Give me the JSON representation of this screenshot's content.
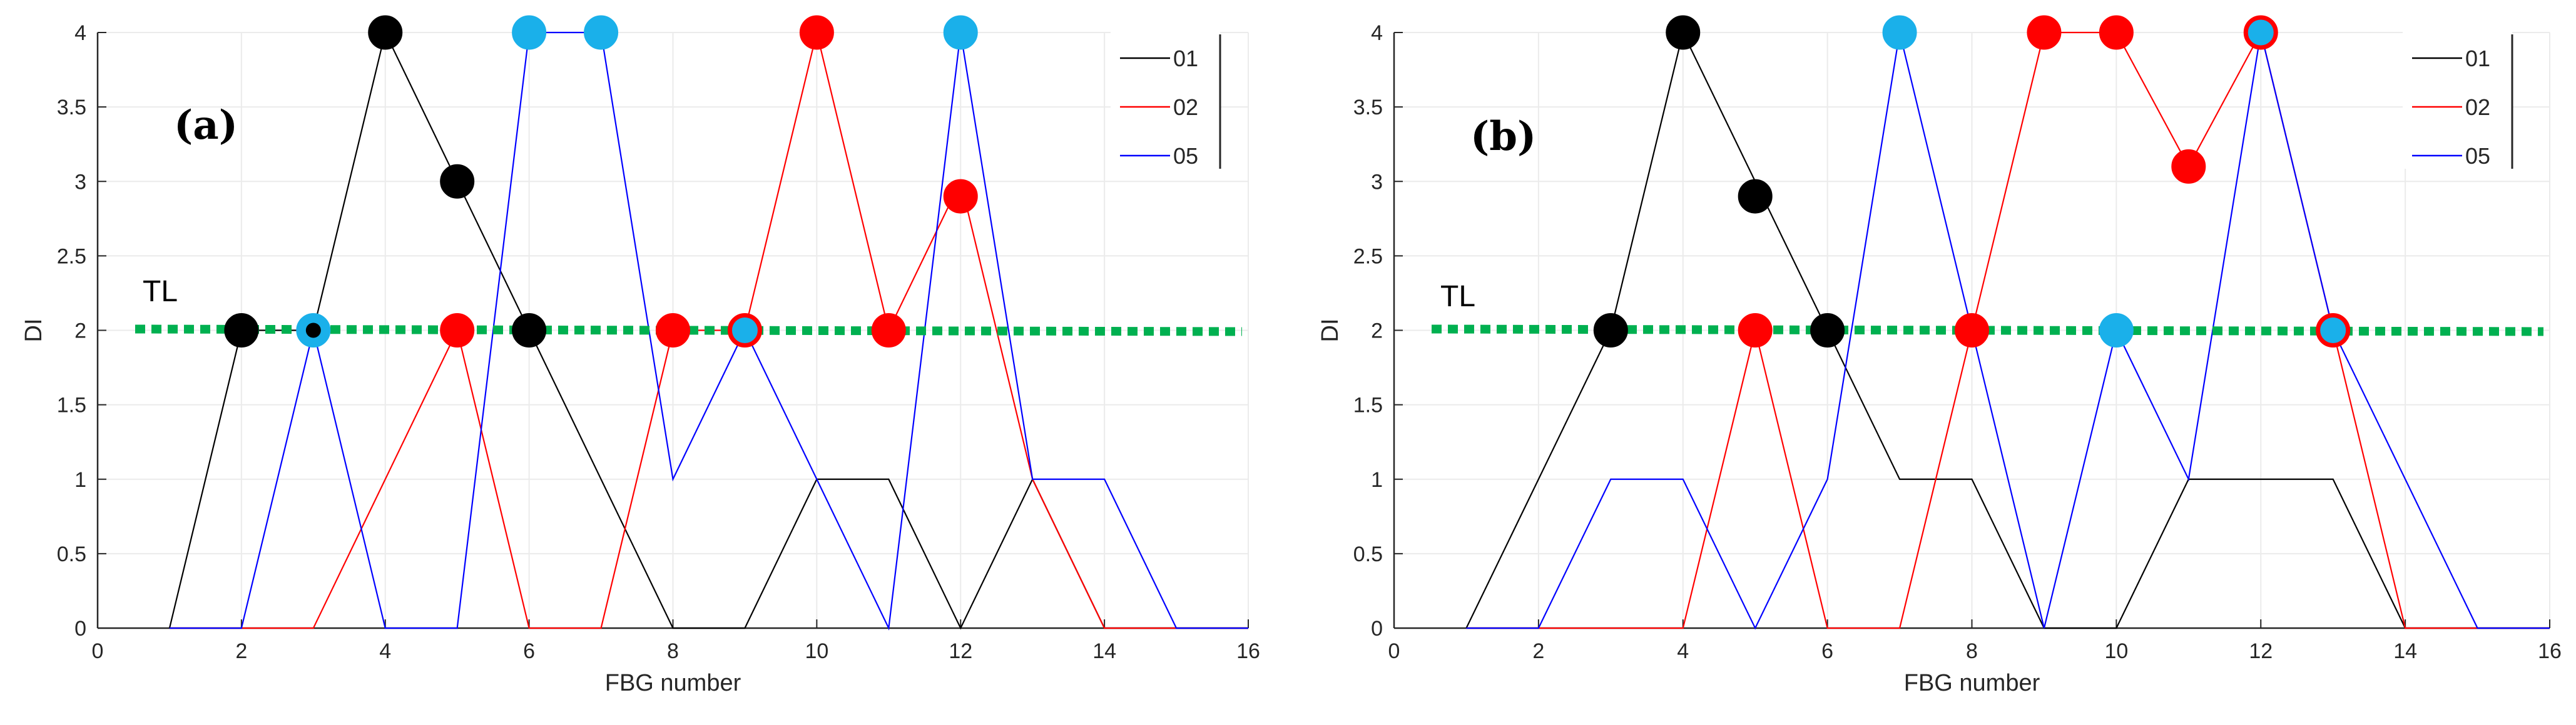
{
  "chart_data": [
    {
      "type": "line",
      "panel_label": "(a)",
      "xlabel": "FBG number",
      "ylabel": "DI",
      "xlim": [
        0,
        16
      ],
      "ylim": [
        0,
        4
      ],
      "xticks": [
        0,
        2,
        4,
        6,
        8,
        10,
        12,
        14,
        16
      ],
      "yticks": [
        0,
        0.5,
        1,
        1.5,
        2,
        2.5,
        3,
        3.5,
        4
      ],
      "threshold": {
        "label": "TL",
        "value": 2,
        "color": "#00b050"
      },
      "legend": {
        "position": "top-right",
        "entries": [
          "01",
          "02",
          "05"
        ]
      },
      "series": [
        {
          "name": "01",
          "color": "#000000",
          "x": [
            1,
            2,
            3,
            4,
            5,
            6,
            7,
            8,
            9,
            10,
            11,
            12,
            13,
            14,
            15,
            16
          ],
          "y": [
            0,
            2,
            2,
            4,
            3,
            2,
            1,
            0,
            0,
            1,
            1,
            0,
            1,
            0,
            0,
            0
          ]
        },
        {
          "name": "02",
          "color": "#ff0000",
          "x": [
            1,
            2,
            3,
            4,
            5,
            6,
            7,
            8,
            9,
            10,
            11,
            12,
            13,
            14,
            15,
            16
          ],
          "y": [
            0,
            0,
            0,
            1,
            2,
            0,
            0,
            2,
            2,
            4,
            2,
            3,
            1,
            0,
            0,
            0
          ]
        },
        {
          "name": "05",
          "color": "#0000ff",
          "x": [
            1,
            2,
            3,
            4,
            5,
            6,
            7,
            8,
            9,
            10,
            11,
            12,
            13,
            14,
            15,
            16
          ],
          "y": [
            0,
            0,
            2,
            0,
            0,
            4,
            4,
            1,
            2,
            1,
            0,
            4,
            1,
            1,
            0,
            0
          ]
        }
      ],
      "markers": [
        {
          "x": 2,
          "y": 2,
          "fill": "#000000",
          "edge": "#000000"
        },
        {
          "x": 4,
          "y": 4,
          "fill": "#000000",
          "edge": "#000000"
        },
        {
          "x": 5,
          "y": 3,
          "fill": "#000000",
          "edge": "#000000"
        },
        {
          "x": 6,
          "y": 2,
          "fill": "#000000",
          "edge": "#000000"
        },
        {
          "x": 3,
          "y": 2,
          "fill": "#1ab0ea",
          "edge": "#1ab0ea",
          "inner": "#000000"
        },
        {
          "x": 6,
          "y": 4,
          "fill": "#1ab0ea",
          "edge": "#1ab0ea"
        },
        {
          "x": 7,
          "y": 4,
          "fill": "#1ab0ea",
          "edge": "#1ab0ea"
        },
        {
          "x": 12,
          "y": 4,
          "fill": "#1ab0ea",
          "edge": "#1ab0ea"
        },
        {
          "x": 5,
          "y": 2,
          "fill": "#ff0000",
          "edge": "#ff0000"
        },
        {
          "x": 8,
          "y": 2,
          "fill": "#ff0000",
          "edge": "#ff0000"
        },
        {
          "x": 9,
          "y": 2,
          "fill": "#1ab0ea",
          "edge": "#ff0000"
        },
        {
          "x": 10,
          "y": 4,
          "fill": "#ff0000",
          "edge": "#ff0000"
        },
        {
          "x": 11,
          "y": 2,
          "fill": "#ff0000",
          "edge": "#ff0000"
        },
        {
          "x": 12,
          "y": 2.9,
          "fill": "#ff0000",
          "edge": "#ff0000"
        }
      ]
    },
    {
      "type": "line",
      "panel_label": "(b)",
      "xlabel": "FBG number",
      "ylabel": "DI",
      "xlim": [
        0,
        16
      ],
      "ylim": [
        0,
        4
      ],
      "xticks": [
        0,
        2,
        4,
        6,
        8,
        10,
        12,
        14,
        16
      ],
      "yticks": [
        0,
        0.5,
        1,
        1.5,
        2,
        2.5,
        3,
        3.5,
        4
      ],
      "threshold": {
        "label": "TL",
        "value": 2,
        "color": "#00b050"
      },
      "legend": {
        "position": "top-right",
        "entries": [
          "01",
          "02",
          "05"
        ]
      },
      "series": [
        {
          "name": "01",
          "color": "#000000",
          "x": [
            1,
            2,
            3,
            4,
            5,
            6,
            7,
            8,
            9,
            10,
            11,
            12,
            13,
            14,
            15,
            16
          ],
          "y": [
            0,
            1,
            2,
            4,
            3,
            2,
            1,
            1,
            0,
            0,
            1,
            1,
            1,
            0,
            0,
            0
          ]
        },
        {
          "name": "02",
          "color": "#ff0000",
          "x": [
            1,
            2,
            3,
            4,
            5,
            6,
            7,
            8,
            9,
            10,
            11,
            12,
            13,
            14,
            15,
            16
          ],
          "y": [
            0,
            0,
            0,
            0,
            2,
            0,
            0,
            2,
            4,
            4,
            3.1,
            4,
            2,
            0,
            0,
            0
          ]
        },
        {
          "name": "05",
          "color": "#0000ff",
          "x": [
            1,
            2,
            3,
            4,
            5,
            6,
            7,
            8,
            9,
            10,
            11,
            12,
            13,
            14,
            15,
            16
          ],
          "y": [
            0,
            0,
            1,
            1,
            0,
            1,
            4,
            2,
            0,
            2,
            1,
            4,
            2,
            1,
            0,
            0
          ]
        }
      ],
      "markers": [
        {
          "x": 3,
          "y": 2,
          "fill": "#000000",
          "edge": "#000000"
        },
        {
          "x": 4,
          "y": 4,
          "fill": "#000000",
          "edge": "#000000"
        },
        {
          "x": 5,
          "y": 2.9,
          "fill": "#000000",
          "edge": "#000000"
        },
        {
          "x": 6,
          "y": 2,
          "fill": "#000000",
          "edge": "#000000"
        },
        {
          "x": 5,
          "y": 2,
          "fill": "#ff0000",
          "edge": "#ff0000"
        },
        {
          "x": 7,
          "y": 4,
          "fill": "#1ab0ea",
          "edge": "#1ab0ea"
        },
        {
          "x": 8,
          "y": 2,
          "fill": "#ff0000",
          "edge": "#ff0000"
        },
        {
          "x": 9,
          "y": 4,
          "fill": "#ff0000",
          "edge": "#ff0000"
        },
        {
          "x": 10,
          "y": 4,
          "fill": "#ff0000",
          "edge": "#ff0000"
        },
        {
          "x": 10,
          "y": 2,
          "fill": "#1ab0ea",
          "edge": "#1ab0ea"
        },
        {
          "x": 11,
          "y": 3.1,
          "fill": "#ff0000",
          "edge": "#ff0000"
        },
        {
          "x": 12,
          "y": 4,
          "fill": "#1ab0ea",
          "edge": "#ff0000"
        },
        {
          "x": 13,
          "y": 2,
          "fill": "#1ab0ea",
          "edge": "#ff0000"
        }
      ]
    }
  ]
}
